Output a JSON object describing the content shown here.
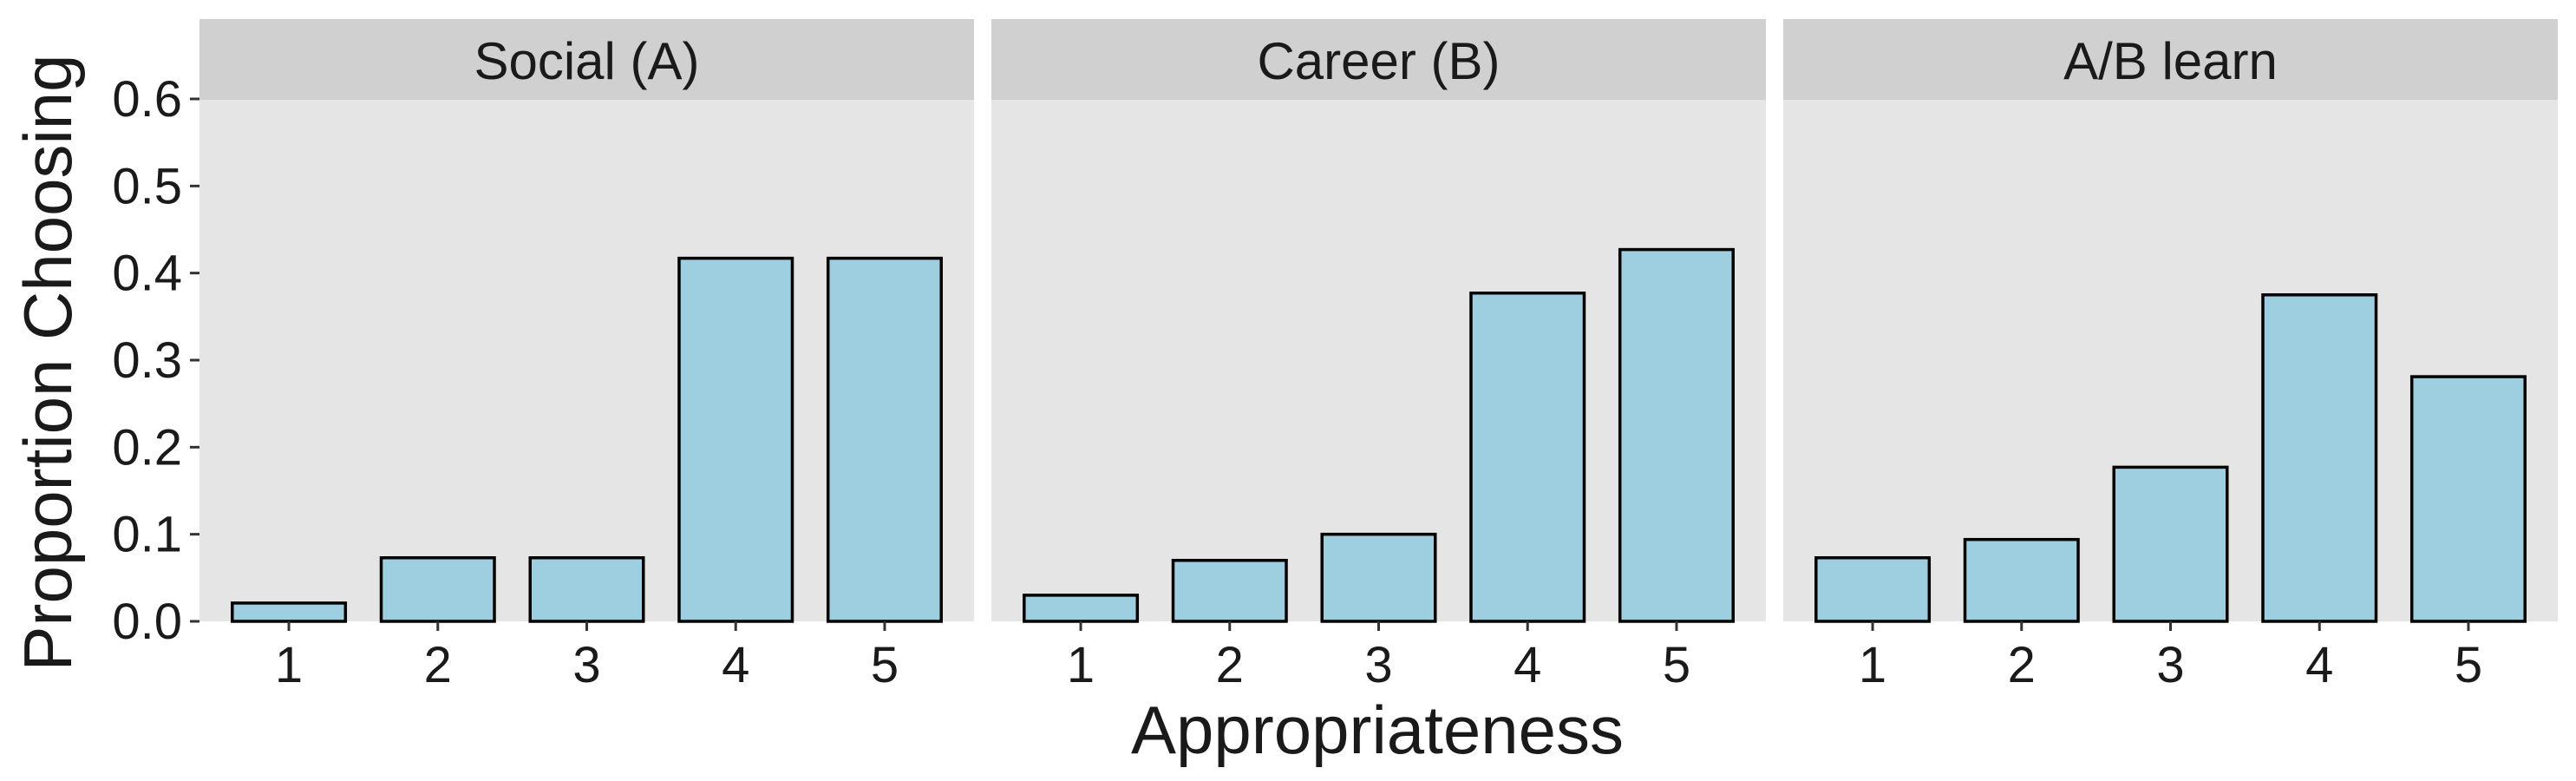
{
  "chart_data": {
    "type": "bar",
    "xlabel": "Appropriateness",
    "ylabel": "Proportion Choosing",
    "ylim": [
      0,
      0.6
    ],
    "yticks": [
      0.0,
      0.1,
      0.2,
      0.3,
      0.4,
      0.5,
      0.6
    ],
    "ytick_labels": [
      "0.0",
      "0.1",
      "0.2",
      "0.3",
      "0.4",
      "0.5",
      "0.6"
    ],
    "categories": [
      "1",
      "2",
      "3",
      "4",
      "5"
    ],
    "grid": false,
    "bar_color": "#9ecfe0",
    "panel_bg": "#e5e5e5",
    "strip_bg": "#d0d0d0",
    "panels": [
      {
        "title": "Social (A)",
        "values": [
          0.021,
          0.073,
          0.073,
          0.417,
          0.417
        ]
      },
      {
        "title": "Career (B)",
        "values": [
          0.03,
          0.07,
          0.1,
          0.377,
          0.427
        ]
      },
      {
        "title": "A/B learn",
        "values": [
          0.073,
          0.094,
          0.177,
          0.375,
          0.281
        ]
      }
    ]
  }
}
